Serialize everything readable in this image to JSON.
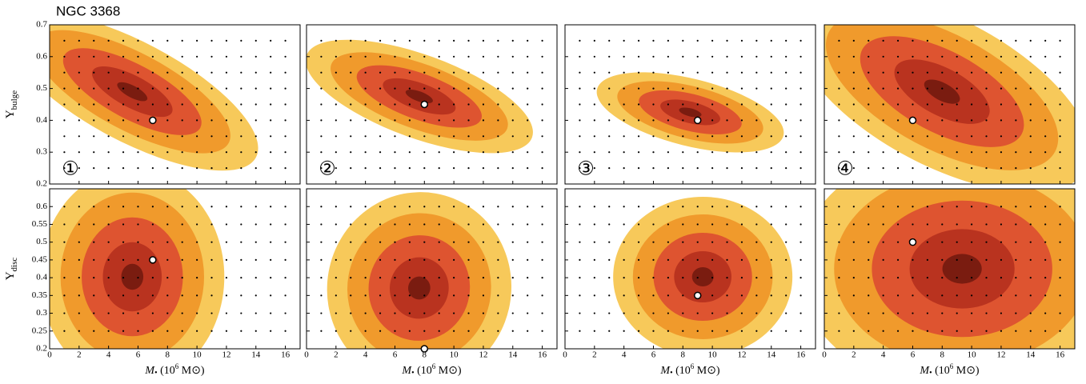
{
  "chart_data": [
    {
      "type": "contour",
      "title": "NGC 3368",
      "label": "①",
      "ylabel": {
        "symbol": "Υ",
        "sub": "bulge"
      },
      "xlim": [
        0,
        17
      ],
      "xticks": [
        0,
        2,
        4,
        6,
        8,
        10,
        12,
        14,
        16
      ],
      "ylim": [
        0.2,
        0.7
      ],
      "yticks": [
        0.2,
        0.3,
        0.4,
        0.5,
        0.6,
        0.7
      ],
      "x": [
        7
      ],
      "values": [
        0.4
      ],
      "colors": [
        "#f7c95a",
        "#f09a2c",
        "#de5430",
        "#b9331f",
        "#7a1c10"
      ]
    },
    {
      "type": "contour",
      "label": "②",
      "xlim": [
        0,
        17
      ],
      "xticks": [
        0,
        2,
        4,
        6,
        8,
        10,
        12,
        14,
        16
      ],
      "ylim": [
        0.2,
        0.7
      ],
      "yticks": [
        0.2,
        0.3,
        0.4,
        0.5,
        0.6,
        0.7
      ],
      "x": [
        8
      ],
      "values": [
        0.45
      ],
      "colors": [
        "#f7c95a",
        "#f09a2c",
        "#de5430",
        "#b9331f",
        "#7a1c10"
      ]
    },
    {
      "type": "contour",
      "label": "③",
      "xlim": [
        0,
        17
      ],
      "xticks": [
        0,
        2,
        4,
        6,
        8,
        10,
        12,
        14,
        16
      ],
      "ylim": [
        0.2,
        0.7
      ],
      "yticks": [
        0.2,
        0.3,
        0.4,
        0.5,
        0.6,
        0.7
      ],
      "x": [
        9
      ],
      "values": [
        0.4
      ],
      "colors": [
        "#f7c95a",
        "#f09a2c",
        "#de5430",
        "#b9331f",
        "#7a1c10"
      ]
    },
    {
      "type": "contour",
      "label": "④",
      "xlim": [
        0,
        17
      ],
      "xticks": [
        0,
        2,
        4,
        6,
        8,
        10,
        12,
        14,
        16
      ],
      "ylim": [
        0.2,
        0.7
      ],
      "yticks": [
        0.2,
        0.3,
        0.4,
        0.5,
        0.6,
        0.7
      ],
      "x": [
        6
      ],
      "values": [
        0.4
      ],
      "colors": [
        "#f7c95a",
        "#f09a2c",
        "#de5430",
        "#b9331f",
        "#7a1c10"
      ]
    },
    {
      "type": "contour",
      "ylabel": {
        "symbol": "Υ",
        "sub": "disc"
      },
      "xlabel": {
        "pre": "M",
        "bullet": "•",
        "mid": " (10",
        "sup": "6",
        "post": " M⊙)"
      },
      "xlim": [
        0,
        17
      ],
      "xticks": [
        0,
        2,
        4,
        6,
        8,
        10,
        12,
        14,
        16
      ],
      "ylim": [
        0.2,
        0.65
      ],
      "yticks": [
        0.2,
        0.25,
        0.3,
        0.35,
        0.4,
        0.45,
        0.5,
        0.55,
        0.6
      ],
      "x": [
        7
      ],
      "values": [
        0.45
      ],
      "colors": [
        "#f7c95a",
        "#f09a2c",
        "#de5430",
        "#b9331f",
        "#7a1c10"
      ]
    },
    {
      "type": "contour",
      "xlabel": {
        "pre": "M",
        "bullet": "•",
        "mid": " (10",
        "sup": "6",
        "post": " M⊙)"
      },
      "xlim": [
        0,
        17
      ],
      "xticks": [
        0,
        2,
        4,
        6,
        8,
        10,
        12,
        14,
        16
      ],
      "ylim": [
        0.2,
        0.65
      ],
      "yticks": [
        0.2,
        0.25,
        0.3,
        0.35,
        0.4,
        0.45,
        0.5,
        0.55,
        0.6
      ],
      "x": [
        8
      ],
      "values": [
        0.2
      ],
      "colors": [
        "#f7c95a",
        "#f09a2c",
        "#de5430",
        "#b9331f",
        "#7a1c10"
      ]
    },
    {
      "type": "contour",
      "xlabel": {
        "pre": "M",
        "bullet": "•",
        "mid": " (10",
        "sup": "6",
        "post": " M⊙)"
      },
      "xlim": [
        0,
        17
      ],
      "xticks": [
        0,
        2,
        4,
        6,
        8,
        10,
        12,
        14,
        16
      ],
      "ylim": [
        0.2,
        0.65
      ],
      "yticks": [
        0.2,
        0.25,
        0.3,
        0.35,
        0.4,
        0.45,
        0.5,
        0.55,
        0.6
      ],
      "x": [
        9
      ],
      "values": [
        0.35
      ],
      "colors": [
        "#f7c95a",
        "#f09a2c",
        "#de5430",
        "#b9331f",
        "#7a1c10"
      ]
    },
    {
      "type": "contour",
      "xlabel": {
        "pre": "M",
        "bullet": "•",
        "mid": " (10",
        "sup": "6",
        "post": " M⊙)"
      },
      "xlim": [
        0,
        17
      ],
      "xticks": [
        0,
        2,
        4,
        6,
        8,
        10,
        12,
        14,
        16
      ],
      "ylim": [
        0.2,
        0.65
      ],
      "yticks": [
        0.2,
        0.25,
        0.3,
        0.35,
        0.4,
        0.45,
        0.5,
        0.55,
        0.6
      ],
      "x": [
        6
      ],
      "values": [
        0.5
      ],
      "colors": [
        "#f7c95a",
        "#f09a2c",
        "#de5430",
        "#b9331f",
        "#7a1c10"
      ]
    }
  ]
}
